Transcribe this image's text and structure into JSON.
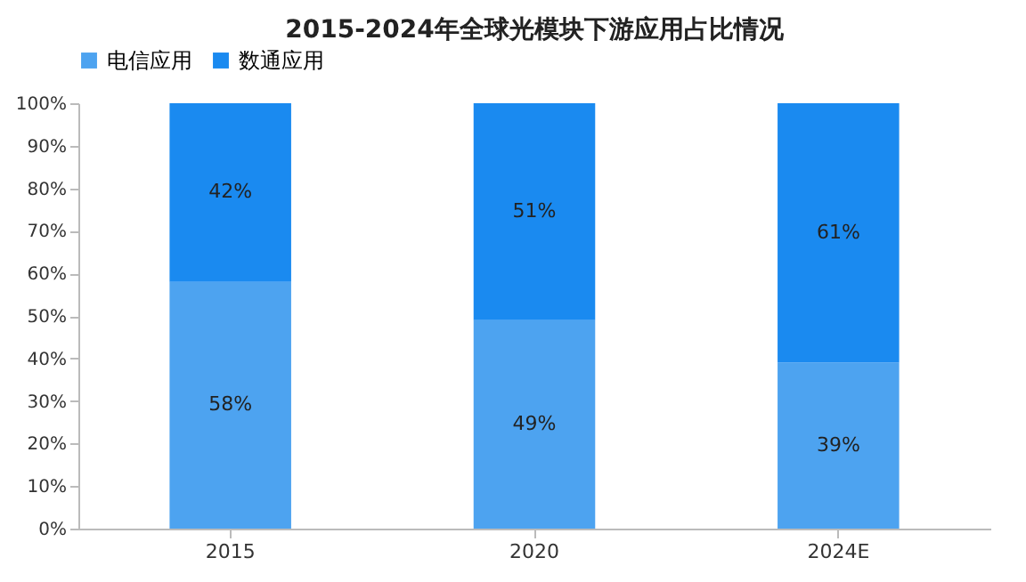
{
  "chart_data": {
    "type": "bar",
    "title": "2015-2024年全球光模块下游应用占比情况",
    "stacked": true,
    "legend": "top",
    "categories": [
      "2015",
      "2020",
      "2024E"
    ],
    "series": [
      {
        "name": "电信应用",
        "color": "#4da3f0",
        "values": [
          58,
          49,
          39
        ],
        "value_labels": [
          "58%",
          "49%",
          "39%"
        ]
      },
      {
        "name": "数通应用",
        "color": "#1a8af0",
        "values": [
          42,
          51,
          61
        ],
        "value_labels": [
          "42%",
          "51%",
          "61%"
        ]
      }
    ],
    "ylim": [
      0,
      100
    ],
    "yticks": [
      {
        "value": 0,
        "label": "0%"
      },
      {
        "value": 10,
        "label": "10%"
      },
      {
        "value": 20,
        "label": "20%"
      },
      {
        "value": 30,
        "label": "30%"
      },
      {
        "value": 40,
        "label": "40%"
      },
      {
        "value": 50,
        "label": "50%"
      },
      {
        "value": 60,
        "label": "60%"
      },
      {
        "value": 70,
        "label": "70%"
      },
      {
        "value": 80,
        "label": "80%"
      },
      {
        "value": 90,
        "label": "90%"
      },
      {
        "value": 100,
        "label": "100%"
      }
    ]
  }
}
